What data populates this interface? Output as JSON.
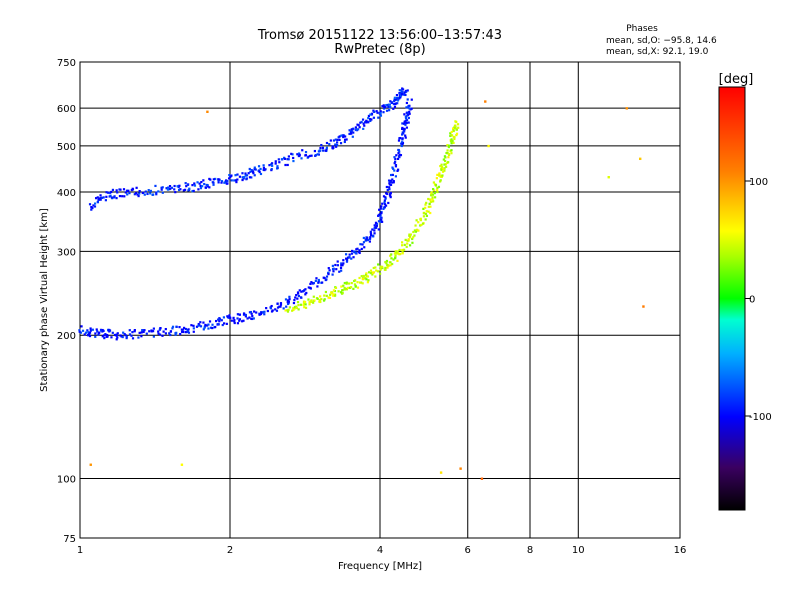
{
  "chart_data": {
    "type": "scatter",
    "title": "Tromsø 20151122 13:56:00–13:57:43",
    "subtitle": "RwPretec (8p)",
    "xlabel": "Frequency [MHz]",
    "ylabel": "Stationary phase Virtual Height [km]",
    "x_scale": "log",
    "y_scale": "log",
    "xlim": [
      1,
      16
    ],
    "ylim": [
      75,
      750
    ],
    "x_ticks": [
      1,
      2,
      4,
      6,
      8,
      10,
      16
    ],
    "y_ticks": [
      75,
      100,
      200,
      300,
      400,
      500,
      600,
      750
    ],
    "x_grid": [
      2,
      4,
      6,
      8,
      10
    ],
    "y_grid": [
      100,
      200,
      300,
      400,
      500,
      600
    ],
    "phases_box": {
      "title": "Phases",
      "line1": "mean, sd,O: −95.8, 14.6",
      "line2": "mean, sd,X:  92.1, 19.0"
    },
    "colorbar": {
      "label": "[deg]",
      "range": [
        -180,
        180
      ],
      "ticks": [
        {
          "value": 100,
          "label": "100"
        },
        {
          "value": 0,
          "label": "0"
        },
        {
          "value": -100,
          "label": "-100"
        }
      ]
    },
    "series": [
      {
        "trace": "F-layer O upper",
        "phase_deg": -95.8,
        "points": [
          [
            1.05,
            375
          ],
          [
            1.15,
            395
          ],
          [
            1.3,
            400
          ],
          [
            1.5,
            405
          ],
          [
            1.7,
            410
          ],
          [
            1.9,
            420
          ],
          [
            2.1,
            430
          ],
          [
            2.3,
            445
          ],
          [
            2.6,
            465
          ],
          [
            3.0,
            490
          ],
          [
            3.3,
            510
          ],
          [
            3.6,
            545
          ],
          [
            3.9,
            580
          ],
          [
            4.2,
            610
          ],
          [
            4.4,
            640
          ],
          [
            4.5,
            650
          ]
        ]
      },
      {
        "trace": "E/F lower O",
        "phase_deg": -100,
        "points": [
          [
            1.0,
            205
          ],
          [
            1.1,
            202
          ],
          [
            1.2,
            200
          ],
          [
            1.4,
            202
          ],
          [
            1.6,
            205
          ],
          [
            1.8,
            210
          ],
          [
            2.0,
            215
          ],
          [
            2.2,
            220
          ],
          [
            2.5,
            230
          ],
          [
            2.8,
            245
          ],
          [
            3.1,
            265
          ],
          [
            3.4,
            285
          ],
          [
            3.7,
            310
          ],
          [
            3.95,
            340
          ],
          [
            4.1,
            380
          ],
          [
            4.25,
            430
          ],
          [
            4.4,
            500
          ],
          [
            4.5,
            560
          ],
          [
            4.6,
            620
          ]
        ]
      },
      {
        "trace": "lower X",
        "phase_deg": 92.1,
        "points": [
          [
            2.6,
            225
          ],
          [
            2.9,
            235
          ],
          [
            3.2,
            245
          ],
          [
            3.5,
            255
          ],
          [
            3.8,
            265
          ],
          [
            4.1,
            280
          ],
          [
            4.4,
            300
          ],
          [
            4.7,
            330
          ],
          [
            5.0,
            370
          ],
          [
            5.2,
            410
          ],
          [
            5.4,
            460
          ],
          [
            5.6,
            520
          ],
          [
            5.7,
            560
          ]
        ]
      },
      {
        "trace": "scatter",
        "phase_deg": 120,
        "points": [
          [
            1.05,
            107
          ],
          [
            1.6,
            107
          ],
          [
            1.8,
            590
          ],
          [
            5.3,
            103
          ],
          [
            5.8,
            105
          ],
          [
            6.4,
            100
          ],
          [
            6.5,
            620
          ],
          [
            6.6,
            500
          ],
          [
            11.5,
            430
          ],
          [
            12.5,
            600
          ],
          [
            13.3,
            470
          ],
          [
            13.5,
            230
          ]
        ]
      }
    ]
  }
}
